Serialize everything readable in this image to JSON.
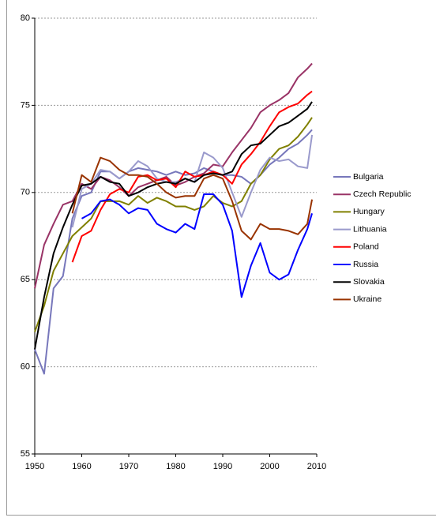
{
  "chart_data": {
    "type": "line",
    "x": [
      1950,
      1952,
      1954,
      1956,
      1958,
      1960,
      1962,
      1964,
      1966,
      1968,
      1970,
      1972,
      1974,
      1976,
      1978,
      1980,
      1982,
      1984,
      1986,
      1988,
      1990,
      1992,
      1994,
      1996,
      1998,
      2000,
      2002,
      2004,
      2006,
      2008,
      2009
    ],
    "xlim": [
      1950,
      2010
    ],
    "xticks": [
      1950,
      1960,
      1970,
      1980,
      1990,
      2000,
      2010
    ],
    "ylim": [
      55,
      80
    ],
    "yticks": [
      55,
      60,
      65,
      70,
      75,
      80
    ],
    "grid": true,
    "series": [
      {
        "name": "Bulgaria",
        "color": "#7777bb",
        "values": [
          61,
          59.6,
          64.5,
          65.2,
          68.5,
          69.8,
          70,
          71.2,
          71.2,
          70.8,
          71.2,
          71.4,
          71.3,
          71.2,
          71.0,
          71.2,
          71.0,
          71.1,
          71.4,
          71.2,
          71.0,
          71.0,
          70.9,
          70.5,
          71.0,
          71.6,
          72.0,
          72.5,
          72.8,
          73.3,
          73.6
        ]
      },
      {
        "name": "Czech Republic",
        "color": "#993366",
        "values": [
          64.5,
          67,
          68.2,
          69.3,
          69.5,
          70.5,
          70.2,
          70.9,
          70.7,
          70.3,
          69.8,
          70.3,
          70.5,
          70.7,
          70.9,
          70.4,
          70.6,
          70.9,
          71.1,
          71.6,
          71.5,
          72.3,
          73.0,
          73.7,
          74.6,
          75.0,
          75.3,
          75.7,
          76.6,
          77.1,
          77.4
        ]
      },
      {
        "name": "Hungary",
        "color": "#808000",
        "values": [
          62,
          63.5,
          65.5,
          66.5,
          67.5,
          68,
          68.5,
          69.5,
          69.5,
          69.5,
          69.3,
          69.8,
          69.4,
          69.7,
          69.5,
          69.2,
          69.2,
          69.0,
          69.2,
          69.8,
          69.4,
          69.2,
          69.5,
          70.5,
          71.0,
          71.9,
          72.5,
          72.7,
          73.2,
          73.9,
          74.3
        ]
      },
      {
        "name": "Lithuania",
        "color": "#9a9acc",
        "values": [
          null,
          null,
          null,
          null,
          68,
          70.2,
          70.5,
          71.3,
          71.2,
          70.8,
          71.2,
          71.8,
          71.5,
          70.8,
          70.6,
          70.6,
          70.8,
          70.6,
          72.3,
          72.0,
          71.4,
          70.0,
          68.6,
          70.0,
          71.3,
          72.0,
          71.8,
          71.9,
          71.5,
          71.4,
          73.3
        ]
      },
      {
        "name": "Poland",
        "color": "#ff0000",
        "values": [
          null,
          null,
          null,
          null,
          66,
          67.5,
          67.8,
          69.0,
          69.9,
          70.2,
          70.0,
          70.9,
          71.0,
          70.7,
          70.8,
          70.3,
          71.2,
          70.9,
          71.0,
          71.2,
          71.0,
          70.5,
          71.6,
          72.2,
          72.9,
          73.8,
          74.6,
          74.9,
          75.1,
          75.6,
          75.8
        ]
      },
      {
        "name": "Russia",
        "color": "#0000ff",
        "values": [
          null,
          null,
          null,
          null,
          null,
          68.5,
          68.8,
          69.5,
          69.6,
          69.3,
          68.8,
          69.1,
          69.0,
          68.2,
          67.9,
          67.7,
          68.2,
          67.9,
          69.9,
          69.9,
          69.3,
          67.8,
          64.0,
          65.8,
          67.1,
          65.4,
          65.0,
          65.3,
          66.7,
          67.9,
          68.8
        ]
      },
      {
        "name": "Slovakia",
        "color": "#000000",
        "values": [
          61,
          64,
          66.5,
          68,
          69.3,
          70.4,
          70.5,
          70.9,
          70.6,
          70.5,
          69.8,
          70.0,
          70.3,
          70.5,
          70.6,
          70.5,
          70.8,
          70.6,
          71.0,
          71.1,
          71.0,
          71.2,
          72.2,
          72.7,
          72.8,
          73.3,
          73.8,
          74.0,
          74.4,
          74.8,
          75.2
        ]
      },
      {
        "name": "Ukraine",
        "color": "#993300",
        "values": [
          null,
          null,
          null,
          null,
          68.8,
          71.0,
          70.6,
          72.0,
          71.8,
          71.3,
          71.0,
          71.0,
          70.9,
          70.5,
          70.0,
          69.7,
          69.8,
          69.8,
          70.8,
          71.0,
          70.8,
          69.5,
          67.8,
          67.3,
          68.2,
          67.9,
          67.9,
          67.8,
          67.6,
          68.2,
          69.6
        ]
      }
    ]
  }
}
